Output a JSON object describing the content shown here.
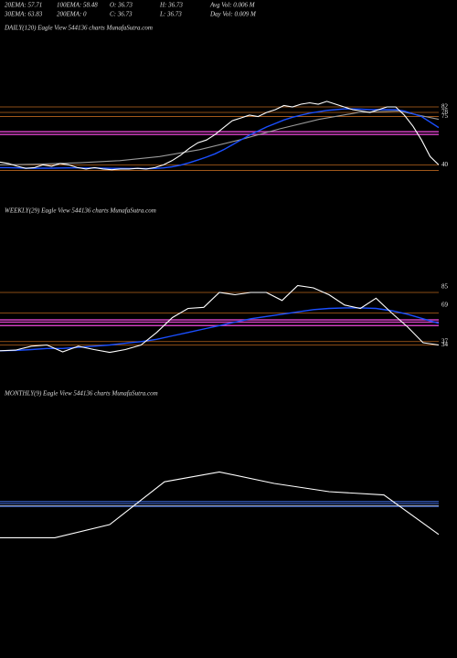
{
  "header": {
    "rows": [
      [
        "20EMA: 57.71",
        "100EMA: 58.48",
        "O: 36.73",
        "H: 36.73",
        "Avg Vol: 0.006  M"
      ],
      [
        "30EMA: 63.83",
        "200EMA: 0",
        "C: 36.73",
        "L: 36.73",
        "Day Vol: 0.009 M"
      ]
    ]
  },
  "chart_data": [
    {
      "type": "line",
      "title": "DAILY(120) Eagle  View  544136  charts MunafaSutra.com",
      "ylim": [
        27,
        133
      ],
      "yticks": [
        82,
        78,
        75,
        40
      ],
      "levels": [
        {
          "value": 82,
          "color": "#b8641e"
        },
        {
          "value": 78,
          "color": "#b8641e"
        },
        {
          "value": 75,
          "color": "#b8641e"
        },
        {
          "value": 64,
          "color": "#d040c0"
        },
        {
          "value": 62,
          "color": "#d040c0"
        },
        {
          "value": 40,
          "color": "#b8641e"
        },
        {
          "value": 36,
          "color": "#b8641e"
        }
      ],
      "series": [
        {
          "color": "#999999",
          "values": [
            40,
            40.5,
            41.5,
            43,
            46,
            51,
            58,
            66,
            73,
            78,
            79,
            73
          ]
        },
        {
          "color": "#1a4fff",
          "values": [
            38,
            38,
            37.8,
            37.6,
            37.5,
            37.6,
            37.6,
            37.7,
            37.8,
            37.8,
            37.7,
            37.7,
            37.6,
            37.5,
            37.5,
            37.4,
            37.4,
            37.3,
            37.4,
            37.8,
            38.6,
            39.8,
            41.5,
            43.5,
            45.6,
            48,
            51,
            54.5,
            58,
            61.5,
            64.5,
            67.5,
            70,
            72.5,
            74.5,
            76,
            77.5,
            78.5,
            79.5,
            80,
            80.5,
            80.5,
            80.3,
            80,
            80,
            80,
            80,
            79,
            77,
            75,
            71,
            67
          ]
        },
        {
          "color": "#ffffff",
          "values": [
            42,
            41,
            39,
            37.5,
            38,
            40,
            39,
            41,
            40,
            38,
            37,
            38,
            37,
            36.5,
            37,
            37,
            37.5,
            37,
            38,
            40,
            43,
            47,
            52,
            56,
            58,
            62,
            67,
            72,
            74,
            76,
            75,
            78,
            80,
            83,
            82,
            84,
            85,
            84,
            86,
            84,
            82,
            80,
            79,
            78,
            80,
            82,
            82,
            76,
            68,
            58,
            46,
            40
          ]
        }
      ]
    },
    {
      "type": "line",
      "title": "WEEKLY(29) Eagle  View  544136  charts MunafaSutra.com",
      "ylim": [
        24,
        144
      ],
      "yticks": [
        85,
        69,
        37,
        34
      ],
      "levels": [
        {
          "value": 80,
          "color": "#b8641e"
        },
        {
          "value": 62,
          "color": "#b8641e"
        },
        {
          "value": 56,
          "color": "#d040c0"
        },
        {
          "value": 54,
          "color": "#d040c0"
        },
        {
          "value": 51,
          "color": "#d040c0"
        },
        {
          "value": 37,
          "color": "#b8641e"
        },
        {
          "value": 34,
          "color": "#b8641e"
        }
      ],
      "series": [
        {
          "color": "#1a4fff",
          "values": [
            29,
            29.3,
            30,
            31,
            31,
            32,
            33,
            34,
            35.5,
            37,
            39,
            42,
            45,
            48,
            51,
            54,
            57,
            59,
            61,
            63,
            65,
            66,
            66.5,
            66.5,
            66,
            64,
            61,
            57,
            53
          ]
        },
        {
          "color": "#ffffff",
          "values": [
            29,
            29.5,
            33,
            34,
            28,
            33,
            30,
            27.5,
            30,
            34,
            45,
            58,
            66,
            67,
            80,
            78,
            80,
            80,
            73,
            86,
            84,
            78,
            69,
            66,
            75,
            62,
            50,
            36,
            34
          ]
        }
      ]
    },
    {
      "type": "line",
      "title": "MONTHLY(9) Eagle  View  544136  charts MunafaSutra.com",
      "ylim": [
        -20,
        130
      ],
      "yticks": [],
      "levels": [
        {
          "value": 64,
          "color": "#4a7cff"
        },
        {
          "value": 62.8,
          "color": "#4a7cff"
        },
        {
          "value": 61.5,
          "color": "#cccccc"
        },
        {
          "value": 61,
          "color": "#4a7cff"
        }
      ],
      "series": [
        {
          "color": "#ffffff",
          "values": [
            42,
            42,
            50,
            76,
            82,
            75,
            70,
            68,
            44
          ]
        }
      ]
    }
  ]
}
